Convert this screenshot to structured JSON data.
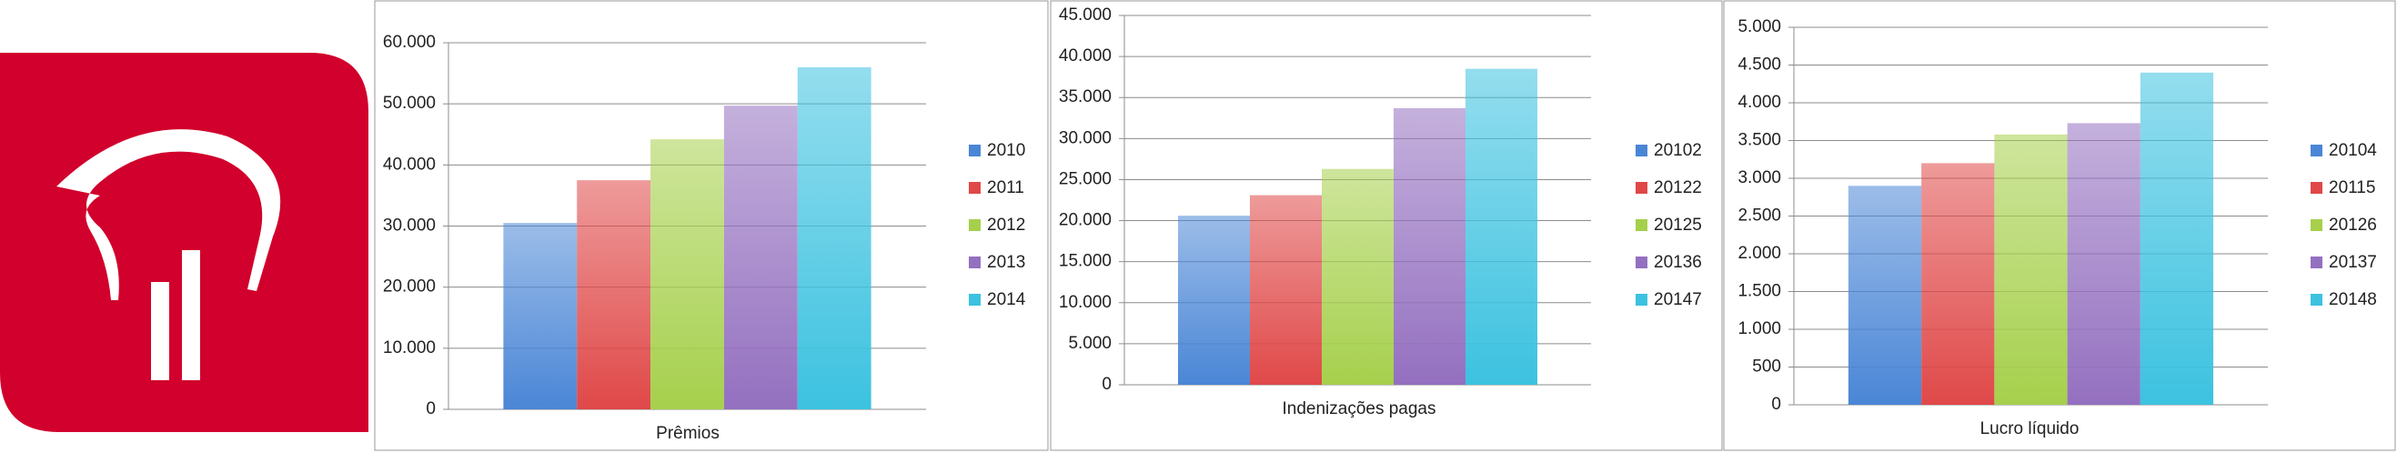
{
  "chart_data": [
    {
      "type": "bar",
      "xlabel": "Prêmios",
      "categories": [
        null
      ],
      "series": [
        {
          "name": "2010",
          "color": "#4a86d6",
          "values": [
            30500
          ]
        },
        {
          "name": "2011",
          "color": "#e04848",
          "values": [
            37500
          ]
        },
        {
          "name": "2012",
          "color": "#a6d04c",
          "values": [
            44200
          ]
        },
        {
          "name": "2013",
          "color": "#9470c0",
          "values": [
            49700
          ]
        },
        {
          "name": "2014",
          "color": "#3cc2e0",
          "values": [
            56000
          ]
        }
      ],
      "ylim": [
        0,
        60000
      ],
      "yticks": [
        0,
        {
          "value": 10000,
          "label": "10.000"
        },
        {
          "value": 20000,
          "label": "20.000"
        },
        {
          "value": 30000,
          "label": "30.000"
        },
        {
          "value": 40000,
          "label": "40.000"
        },
        {
          "value": 50000,
          "label": "50.000"
        },
        {
          "value": 60000,
          "label": "60.000"
        }
      ],
      "grid": true,
      "legend": "right"
    },
    {
      "type": "bar",
      "xlabel": "Indenizações pagas",
      "categories": [
        null
      ],
      "series": [
        {
          "name": "20102",
          "color": "#4a86d6",
          "values": [
            20600
          ]
        },
        {
          "name": "20122",
          "color": "#e04848",
          "values": [
            23100
          ]
        },
        {
          "name": "20125",
          "color": "#a6d04c",
          "values": [
            26300
          ]
        },
        {
          "name": "20136",
          "color": "#9470c0",
          "values": [
            33700
          ]
        },
        {
          "name": "20147",
          "color": "#3cc2e0",
          "values": [
            38500
          ]
        }
      ],
      "ylim": [
        0,
        45000
      ],
      "yticks": [
        0,
        {
          "value": 5000,
          "label": "5.000"
        },
        {
          "value": 10000,
          "label": "10.000"
        },
        {
          "value": 15000,
          "label": "15.000"
        },
        {
          "value": 20000,
          "label": "20.000"
        },
        {
          "value": 25000,
          "label": "25.000"
        },
        {
          "value": 30000,
          "label": "30.000"
        },
        {
          "value": 35000,
          "label": "35.000"
        },
        {
          "value": 40000,
          "label": "40.000"
        },
        {
          "value": 45000,
          "label": "45.000"
        }
      ],
      "grid": true,
      "legend": "right"
    },
    {
      "type": "bar",
      "xlabel": "Lucro líquido",
      "categories": [
        null
      ],
      "series": [
        {
          "name": "20104",
          "color": "#4a86d6",
          "values": [
            2900
          ]
        },
        {
          "name": "20115",
          "color": "#e04848",
          "values": [
            3200
          ]
        },
        {
          "name": "20126",
          "color": "#a6d04c",
          "values": [
            3580
          ]
        },
        {
          "name": "20137",
          "color": "#9470c0",
          "values": [
            3730
          ]
        },
        {
          "name": "20148",
          "color": "#3cc2e0",
          "values": [
            4400
          ]
        }
      ],
      "ylim": [
        0,
        5000
      ],
      "yticks": [
        0,
        500,
        {
          "value": 1000,
          "label": "1.000"
        },
        {
          "value": 1500,
          "label": "1.500"
        },
        {
          "value": 2000,
          "label": "2.000"
        },
        {
          "value": 2500,
          "label": "2.500"
        },
        {
          "value": 3000,
          "label": "3.000"
        },
        {
          "value": 3500,
          "label": "3.500"
        },
        {
          "value": 4000,
          "label": "4.000"
        },
        {
          "value": 4500,
          "label": "4.500"
        },
        {
          "value": 5000,
          "label": "5.000"
        }
      ],
      "grid": true,
      "legend": "right"
    }
  ]
}
